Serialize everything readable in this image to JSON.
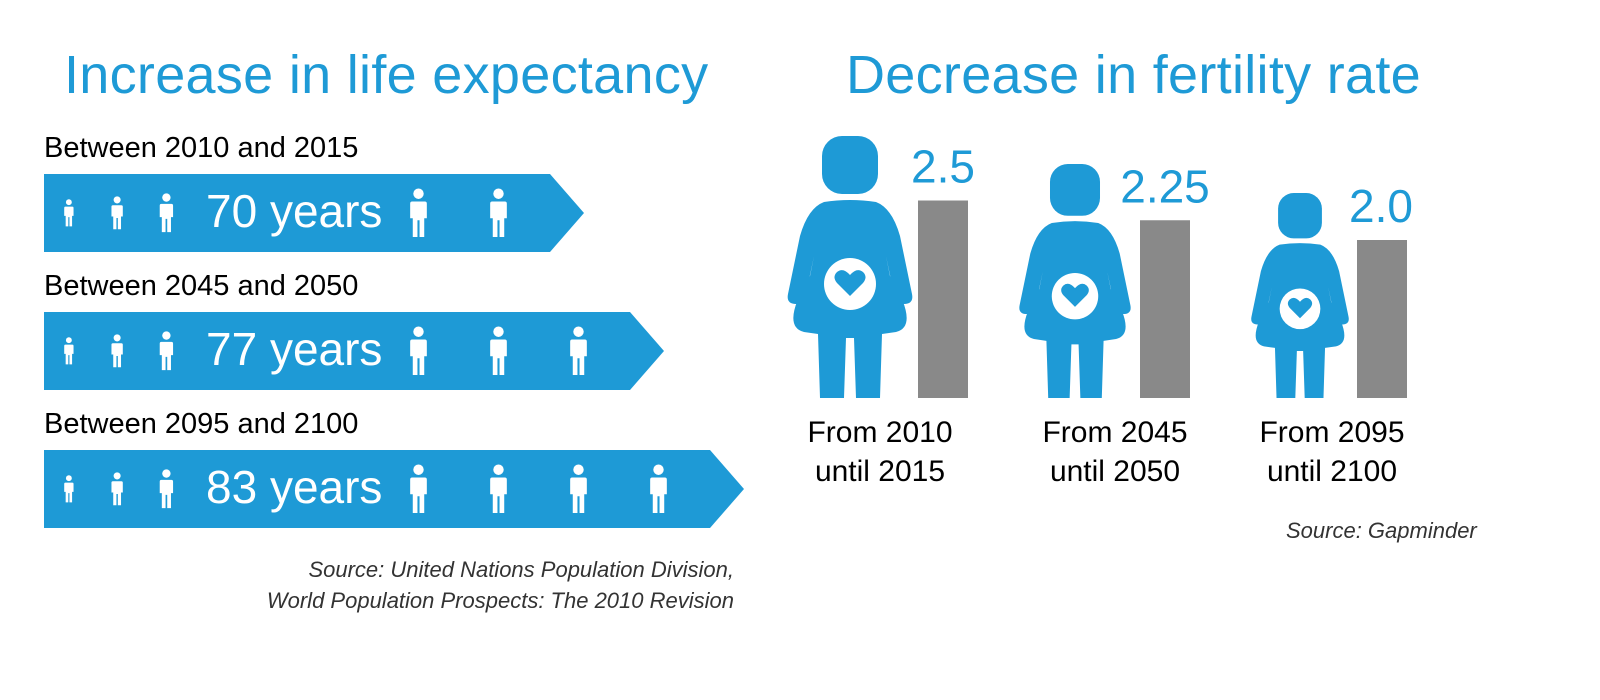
{
  "life_expectancy": {
    "title": "Increase in life expectancy",
    "rows": [
      {
        "period": "Between 2010 and 2015",
        "value_label": "70 years",
        "years": 70
      },
      {
        "period": "Between 2045 and 2050",
        "value_label": "77 years",
        "years": 77
      },
      {
        "period": "Between 2095 and 2100",
        "value_label": "83 years",
        "years": 83
      }
    ],
    "source_line1": "Source: United Nations Population Division,",
    "source_line2": "World Population Prospects: The 2010 Revision"
  },
  "fertility": {
    "title": "Decrease in fertility rate",
    "source": "Source: Gapminder"
  },
  "colors": {
    "accent": "#1e9ad6",
    "bar": "#898989",
    "text": "#000000"
  },
  "chart_data": [
    {
      "type": "bar",
      "title": "Increase in life expectancy",
      "categories": [
        "Between 2010 and 2015",
        "Between 2045 and 2050",
        "Between 2095 and 2100"
      ],
      "values": [
        70,
        77,
        83
      ],
      "data_labels": [
        "70 years",
        "77 years",
        "83 years"
      ],
      "orientation": "horizontal"
    },
    {
      "type": "bar",
      "title": "Decrease in fertility rate",
      "categories": [
        {
          "line1": "From 2010",
          "line2": "until 2015"
        },
        {
          "line1": "From 2045",
          "line2": "until 2050"
        },
        {
          "line1": "From 2095",
          "line2": "until 2100"
        }
      ],
      "values": [
        2.5,
        2.25,
        2.0
      ],
      "data_labels": [
        "2.5",
        "2.25",
        "2.0"
      ]
    }
  ]
}
